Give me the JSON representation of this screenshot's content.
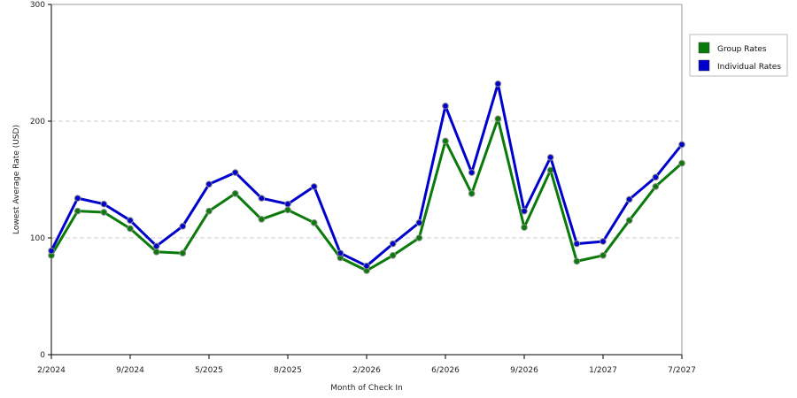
{
  "chart_data": {
    "type": "line",
    "title": "",
    "xlabel": "Month of Check In",
    "ylabel": "Lowest Average Rate (USD)",
    "ylim": [
      0,
      300
    ],
    "yticks": [
      0,
      100,
      200,
      300
    ],
    "xtick_labels": [
      "2/2024",
      "9/2024",
      "5/2025",
      "8/2025",
      "2/2026",
      "6/2026",
      "9/2026",
      "1/2027",
      "7/2027"
    ],
    "grid": "horizontal-dashed",
    "legend_position": "top-right",
    "series": [
      {
        "name": "Group Rates",
        "color": "#0a7a0a",
        "values": [
          85,
          123,
          122,
          108,
          88,
          87,
          123,
          138,
          116,
          124,
          113,
          83,
          72,
          85,
          100,
          183,
          138,
          202,
          109,
          158,
          80,
          85,
          115,
          144,
          164
        ]
      },
      {
        "name": "Individual Rates",
        "color": "#0000cc",
        "values": [
          89,
          134,
          129,
          115,
          93,
          110,
          146,
          156,
          134,
          129,
          144,
          87,
          76,
          95,
          113,
          213,
          156,
          232,
          123,
          169,
          95,
          97,
          133,
          152,
          180
        ]
      }
    ]
  }
}
